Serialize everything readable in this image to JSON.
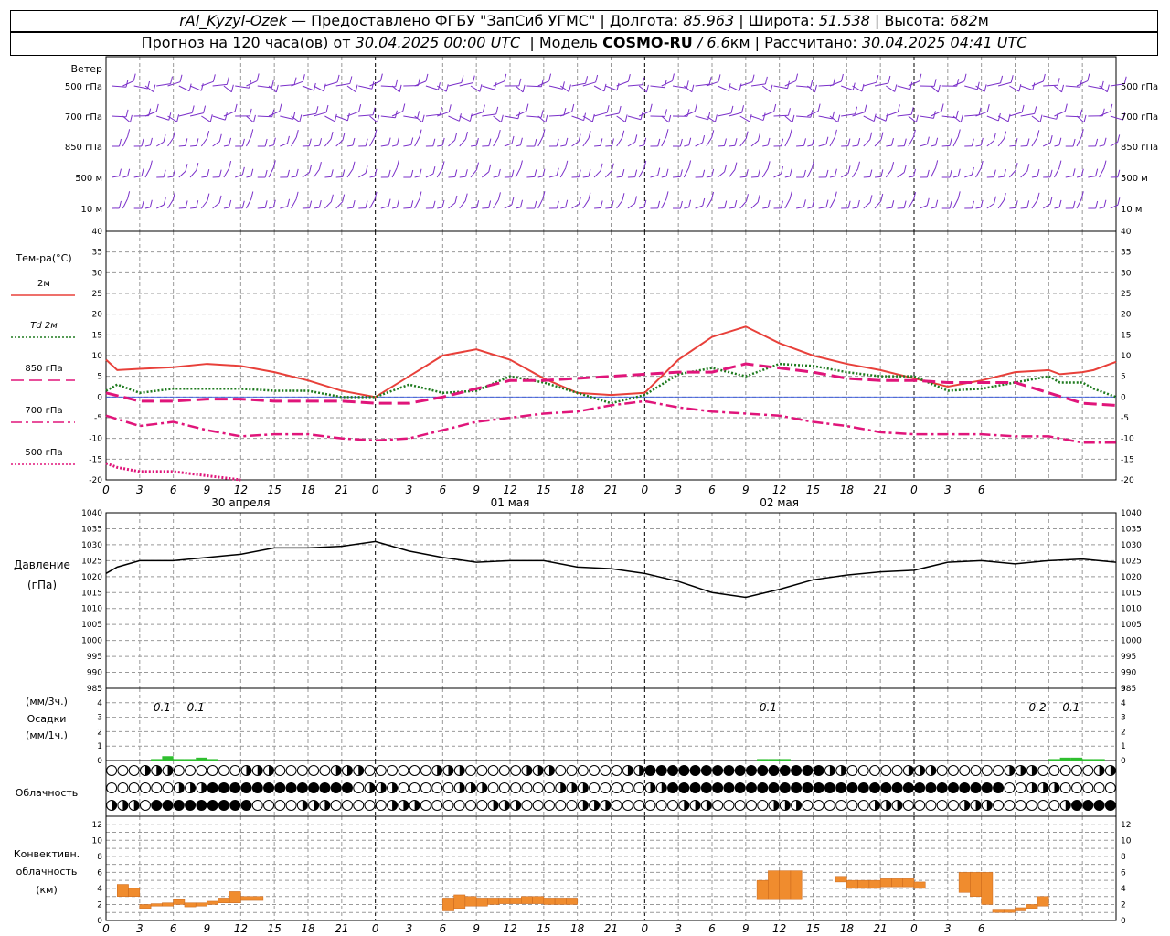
{
  "header": {
    "station": "rAl_Kyzyl-Ozek",
    "provider": "— Предоставлено ФГБУ \"ЗапСиб УГМС\"",
    "lon_label": "Долгота:",
    "lon_value": "85.963",
    "lat_label": "Широта:",
    "lat_value": "51.538",
    "alt_label": "Высота:",
    "alt_value": "682",
    "alt_unit": "м",
    "forecast_label": "Прогноз на 120 часа(ов) от",
    "forecast_start": "30.04.2025 00:00 UTC",
    "model_label": "Модель",
    "model_name": "COSMO-RU",
    "model_res": "/ 6.6",
    "model_res_unit": "км",
    "computed_label": "Рассчитано:",
    "computed_value": "30.04.2025 04:41 UTC"
  },
  "time_axis": {
    "hour_ticks": [
      "0",
      "3",
      "6",
      "9",
      "12",
      "15",
      "18",
      "21",
      "0",
      "3",
      "6",
      "9",
      "12",
      "15",
      "18",
      "21",
      "0",
      "3",
      "6",
      "9",
      "12",
      "15",
      "18",
      "21",
      "0",
      "3",
      "6"
    ],
    "dates": [
      "30 апреля",
      "01 мая",
      "02 мая"
    ]
  },
  "wind": {
    "title": "Ветер",
    "levels": [
      "500 гПа",
      "700 гПа",
      "850 гПа",
      "500 м",
      "10 м"
    ]
  },
  "temperature": {
    "title": "Тем-ра(°C)",
    "legend": [
      {
        "label": "2м",
        "color": "#e8403a",
        "style": "solid"
      },
      {
        "label": "Td 2м",
        "color": "#1e7a1e",
        "style": "dotted"
      },
      {
        "label": "850 гПа",
        "color": "#e0157a",
        "style": "longdash"
      },
      {
        "label": "700 гПа",
        "color": "#e0157a",
        "style": "dashdot"
      },
      {
        "label": "500 гПа",
        "color": "#e0157a",
        "style": "dot"
      }
    ],
    "y_ticks": [
      "40",
      "35",
      "30",
      "25",
      "20",
      "15",
      "10",
      "5",
      "0",
      "-5",
      "-10",
      "-15",
      "-20"
    ]
  },
  "pressure": {
    "title": "Давление",
    "unit": "(гПа)",
    "y_ticks": [
      "1040",
      "1035",
      "1030",
      "1025",
      "1020",
      "1015",
      "1010",
      "1005",
      "1000",
      "995",
      "990",
      "985"
    ]
  },
  "precip": {
    "unit1": "(мм/3ч.)",
    "title": "Осадки",
    "unit2": "(мм/1ч.)",
    "y_ticks": [
      "5",
      "4",
      "3",
      "2",
      "1",
      "0"
    ],
    "annotations": [
      {
        "hour": 5,
        "text": "0.1"
      },
      {
        "hour": 8,
        "text": "0.1"
      },
      {
        "hour": 59,
        "text": "0.1"
      },
      {
        "hour": 83,
        "text": "0.2"
      },
      {
        "hour": 86,
        "text": "0.1"
      }
    ]
  },
  "cloud": {
    "title": "Облачность"
  },
  "convective": {
    "title1": "Конвективн.",
    "title2": "облачность",
    "unit": "(км)",
    "y_ticks": [
      "12",
      "10",
      "8",
      "6",
      "4",
      "2",
      "0"
    ]
  },
  "chart_data": [
    {
      "type": "line",
      "name": "temperature",
      "x_unit": "hours from 30.04.2025 00:00 UTC",
      "ylim": [
        -20,
        40
      ],
      "series": [
        {
          "name": "2м",
          "x": [
            0,
            1,
            3,
            6,
            9,
            12,
            15,
            18,
            21,
            24,
            27,
            30,
            33,
            36,
            39,
            42,
            45,
            48,
            51,
            54,
            57,
            60,
            63,
            66,
            69,
            72,
            75,
            78,
            81,
            84,
            85,
            87,
            88,
            90
          ],
          "values": [
            9,
            6.5,
            6.8,
            7.2,
            8,
            7.5,
            6,
            4,
            1.5,
            0,
            5,
            10,
            11.5,
            9,
            4.5,
            1,
            0.5,
            1,
            9,
            14.5,
            17,
            13,
            10,
            8,
            6.5,
            4.5,
            2.5,
            4,
            6,
            6.5,
            5.5,
            6,
            6.5,
            8.5
          ]
        },
        {
          "name": "Td 2м",
          "x": [
            0,
            1,
            3,
            6,
            9,
            12,
            15,
            18,
            21,
            24,
            27,
            30,
            33,
            36,
            39,
            42,
            45,
            48,
            51,
            54,
            57,
            60,
            63,
            66,
            69,
            72,
            75,
            78,
            81,
            84,
            85,
            87,
            88,
            90
          ],
          "values": [
            1.5,
            3,
            1,
            2,
            2,
            2,
            1.5,
            1.5,
            0,
            0,
            3,
            1,
            1.5,
            5,
            3.5,
            1,
            -1.5,
            0.5,
            5.5,
            7,
            5,
            8,
            7.5,
            6,
            5,
            5,
            1.5,
            2,
            3.5,
            5,
            3.5,
            3.5,
            2,
            0
          ]
        },
        {
          "name": "850 гПа",
          "x": [
            0,
            3,
            6,
            9,
            12,
            15,
            18,
            21,
            24,
            27,
            30,
            33,
            36,
            39,
            42,
            45,
            48,
            51,
            54,
            57,
            60,
            63,
            66,
            69,
            72,
            75,
            78,
            81,
            84,
            87,
            90
          ],
          "values": [
            1,
            -1,
            -1,
            -0.5,
            -0.5,
            -1,
            -1,
            -1,
            -1.5,
            -1.5,
            0,
            2,
            4,
            4,
            4.5,
            5,
            5.5,
            6,
            6,
            8,
            7,
            6,
            4.5,
            4,
            4,
            3.5,
            3.5,
            3.5,
            1,
            -1.5,
            -2
          ]
        },
        {
          "name": "700 гПа",
          "x": [
            0,
            3,
            6,
            9,
            12,
            15,
            18,
            21,
            24,
            27,
            30,
            33,
            36,
            39,
            42,
            45,
            48,
            51,
            54,
            57,
            60,
            63,
            66,
            69,
            72,
            75,
            78,
            81,
            84,
            87,
            90
          ],
          "values": [
            -4.5,
            -7,
            -6,
            -8,
            -9.5,
            -9,
            -9,
            -10,
            -10.5,
            -10,
            -8,
            -6,
            -5,
            -4,
            -3.5,
            -2,
            -1,
            -2.5,
            -3.5,
            -4,
            -4.5,
            -6,
            -7,
            -8.5,
            -9,
            -9,
            -9,
            -9.5,
            -9.5,
            -11,
            -11
          ]
        },
        {
          "name": "500 гПа",
          "x": [
            0,
            1,
            3,
            6,
            9,
            12
          ],
          "values": [
            -16,
            -17,
            -18,
            -18,
            -19,
            -20
          ]
        }
      ]
    },
    {
      "type": "line",
      "name": "pressure",
      "x_unit": "hours from 30.04.2025 00:00 UTC",
      "ylim": [
        985,
        1040
      ],
      "series": [
        {
          "name": "pressure",
          "x": [
            0,
            1,
            3,
            6,
            9,
            12,
            15,
            18,
            21,
            24,
            27,
            30,
            33,
            36,
            39,
            42,
            45,
            48,
            51,
            54,
            57,
            60,
            63,
            66,
            69,
            72,
            75,
            78,
            81,
            84,
            87,
            90
          ],
          "values": [
            1021,
            1023,
            1025,
            1025,
            1026,
            1027,
            1029,
            1029,
            1029.5,
            1031,
            1028,
            1026,
            1024.5,
            1025,
            1025,
            1023,
            1022.5,
            1021,
            1018.5,
            1015,
            1013.5,
            1016,
            1019,
            1020.5,
            1021.5,
            1022,
            1024.5,
            1025,
            1024,
            1025,
            1025.5,
            1024.5
          ]
        }
      ]
    },
    {
      "type": "bar",
      "name": "precipitation",
      "x_unit": "hours from 30.04.2025 00:00 UTC",
      "ylim": [
        0,
        5
      ],
      "series": [
        {
          "name": "precip",
          "x": [
            4,
            5,
            6,
            7,
            8,
            9,
            58,
            59,
            60,
            84,
            85,
            86,
            87,
            88
          ],
          "values": [
            0.1,
            0.3,
            0.1,
            0.1,
            0.2,
            0.1,
            0.1,
            0.1,
            0.1,
            0.1,
            0.2,
            0.2,
            0.1,
            0.1
          ]
        }
      ]
    },
    {
      "type": "bar",
      "name": "convective_cloud",
      "x_unit": "hours from 30.04.2025 00:00 UTC",
      "ylim": [
        0,
        13
      ],
      "series": [
        {
          "name": "layers",
          "bars": [
            [
              1,
              2,
              3,
              4.5
            ],
            [
              2,
              3,
              3,
              4
            ],
            [
              3,
              4,
              1.5,
              2
            ],
            [
              4,
              5,
              1.8,
              2.1
            ],
            [
              5,
              6,
              1.8,
              2.2
            ],
            [
              6,
              7,
              2,
              2.6
            ],
            [
              7,
              8,
              1.7,
              2.2
            ],
            [
              8,
              9,
              1.8,
              2.2
            ],
            [
              9,
              10,
              2,
              2.4
            ],
            [
              10,
              11,
              2.2,
              2.8
            ],
            [
              11,
              12,
              2.2,
              3.6
            ],
            [
              12,
              14,
              2.5,
              3
            ],
            [
              30,
              31,
              1.2,
              2.8
            ],
            [
              31,
              32,
              1.5,
              3.2
            ],
            [
              32,
              33,
              1.8,
              3
            ],
            [
              33,
              34,
              1.8,
              2.8
            ],
            [
              34,
              35,
              2,
              2.8
            ],
            [
              35,
              36,
              2.1,
              2.8
            ],
            [
              36,
              37,
              2.1,
              2.8
            ],
            [
              37,
              38,
              2.1,
              3
            ],
            [
              38,
              39,
              2.1,
              3
            ],
            [
              39,
              40,
              2,
              2.8
            ],
            [
              40,
              41,
              2,
              2.8
            ],
            [
              41,
              42,
              2,
              2.8
            ],
            [
              58,
              59,
              2.6,
              5
            ],
            [
              59,
              60,
              2.6,
              6.2
            ],
            [
              60,
              61,
              2.6,
              6.2
            ],
            [
              61,
              62,
              2.6,
              6.2
            ],
            [
              65,
              66,
              4.8,
              5.5
            ],
            [
              66,
              67,
              4,
              5
            ],
            [
              67,
              68,
              4,
              5
            ],
            [
              68,
              69,
              4,
              5
            ],
            [
              69,
              70,
              4.2,
              5.2
            ],
            [
              70,
              71,
              4.2,
              5.2
            ],
            [
              71,
              72,
              4.2,
              5.2
            ],
            [
              72,
              73,
              4,
              4.8
            ],
            [
              76,
              77,
              3.5,
              6
            ],
            [
              77,
              78,
              3,
              6
            ],
            [
              78,
              79,
              2,
              6
            ],
            [
              79,
              80,
              1,
              1.3
            ],
            [
              80,
              81,
              1,
              1.3
            ],
            [
              81,
              82,
              1.2,
              1.6
            ],
            [
              82,
              83,
              1.5,
              2
            ],
            [
              83,
              84,
              1.8,
              3
            ]
          ]
        }
      ]
    }
  ]
}
